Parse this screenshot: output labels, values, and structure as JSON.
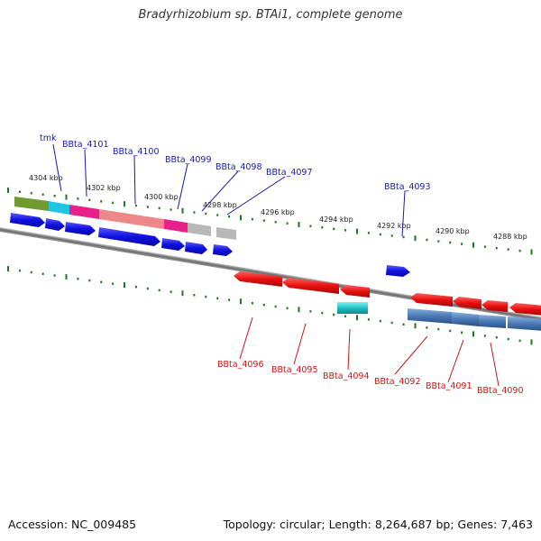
{
  "title": "Bradyrhizobium sp. BTAi1, complete genome",
  "footer": {
    "accession": "Accession: NC_009485",
    "topology": "Topology: circular; Length: 8,264,687 bp; Genes: 7,463"
  },
  "colors": {
    "backbone": "#7a7a7a",
    "tick": "#1f7a1f",
    "top_label": "#1a1aa8",
    "bottom_label": "#c41818",
    "forward_gene": "#1414d8",
    "reverse_gene": "#e01414",
    "cyan_gene": "#22c4c8"
  },
  "position_ticks": [
    "4304 kbp",
    "4302 kbp",
    "4300 kbp",
    "4298 kbp",
    "4296 kbp",
    "4294 kbp",
    "4292 kbp",
    "4290 kbp",
    "4288 kbp"
  ],
  "top_genes": [
    "tmk",
    "BBta_4101",
    "BBta_4100",
    "BBta_4099",
    "BBta_4098",
    "BBta_4097",
    "BBta_4093"
  ],
  "bottom_genes": [
    "BBta_4096",
    "BBta_4095",
    "BBta_4094",
    "BBta_4092",
    "BBta_4091",
    "BBta_4090"
  ],
  "cog_track_colors": [
    "#6f9a30",
    "#22c4e4",
    "#e8208c",
    "#ee8888",
    "#e8208c",
    "#b8b8b8",
    "#b8b8b8",
    "#4a7ab0"
  ]
}
